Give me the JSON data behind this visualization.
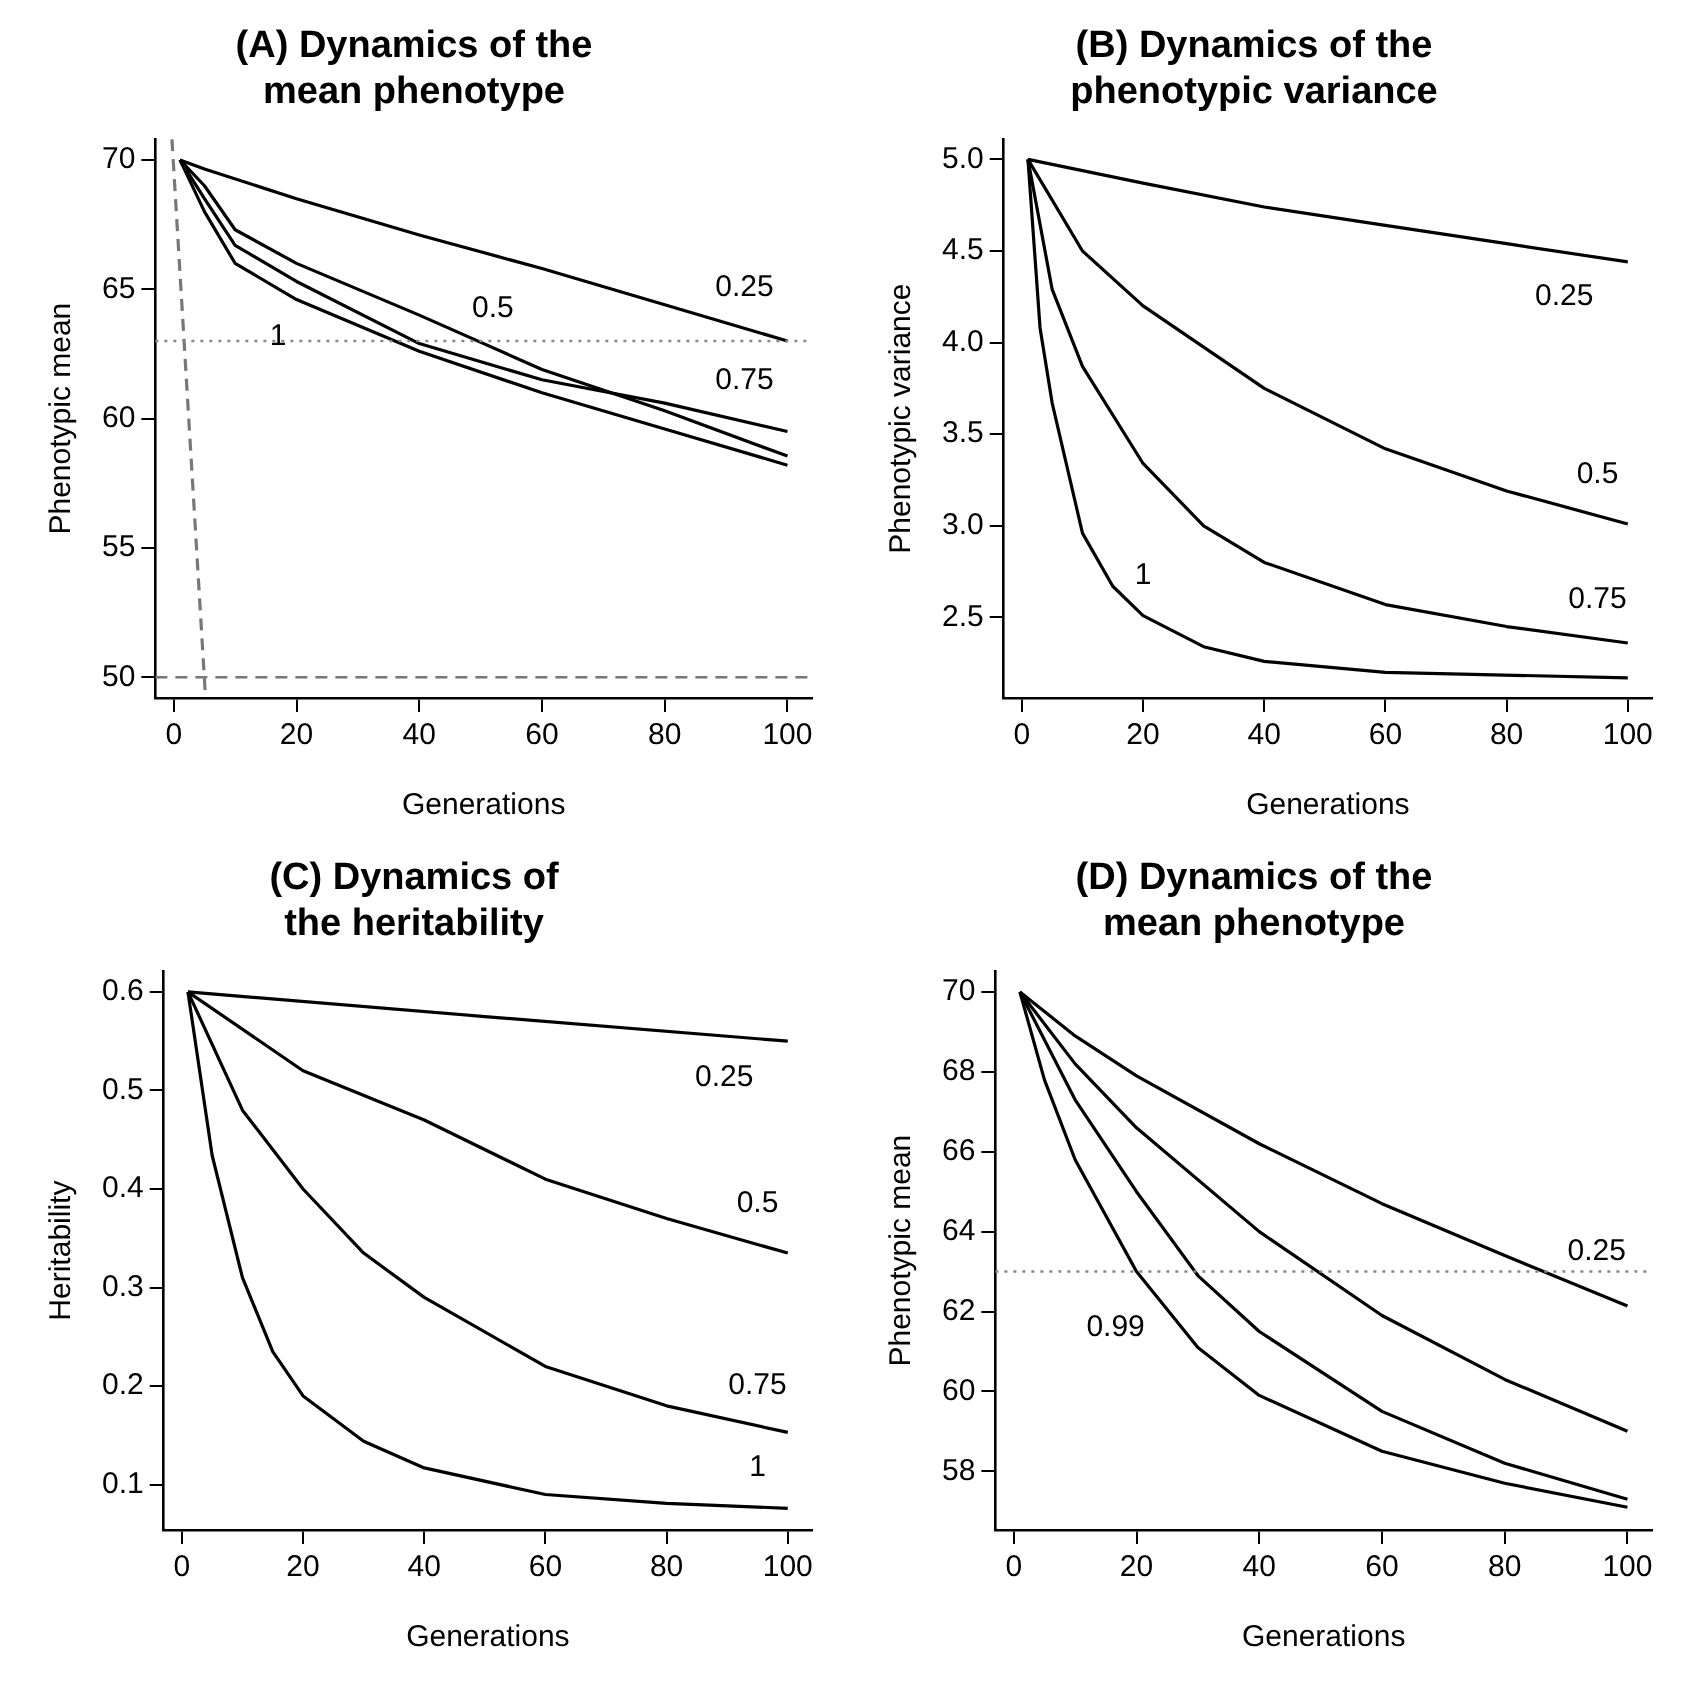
{
  "chart_data": [
    {
      "type": "line",
      "title": "(A) Dynamics of the\nmean phenotype",
      "xlabel": "Generations",
      "ylabel": "Phenotypic mean",
      "xlim": [
        -3,
        104
      ],
      "ylim": [
        49.2,
        70.8
      ],
      "xticks": [
        0,
        20,
        40,
        60,
        80,
        100
      ],
      "yticks": [
        50,
        55,
        60,
        65,
        70
      ],
      "marker": "none",
      "series": [
        {
          "color": "#000000",
          "x": [
            1,
            5,
            20,
            40,
            60,
            80,
            100
          ],
          "values": [
            70,
            69.65,
            68.5,
            67.1,
            65.8,
            64.4,
            63.0
          ]
        },
        {
          "color": "#000000",
          "x": [
            1,
            5,
            10,
            20,
            40,
            60,
            80,
            100
          ],
          "values": [
            70,
            69.0,
            67.3,
            66.0,
            64.0,
            61.9,
            60.3,
            58.55
          ]
        },
        {
          "color": "#000000",
          "x": [
            1,
            5,
            10,
            20,
            40,
            60,
            80,
            100
          ],
          "values": [
            70,
            68.5,
            66.7,
            65.3,
            62.9,
            61.5,
            60.6,
            59.5
          ]
        },
        {
          "color": "#000000",
          "x": [
            1,
            5,
            10,
            20,
            40,
            60,
            80,
            100
          ],
          "values": [
            70,
            68.0,
            66.0,
            64.6,
            62.6,
            61.0,
            59.6,
            58.2
          ]
        },
        {
          "color": "#777777",
          "line_style": "dashed",
          "x": [
            -0.3,
            5.1
          ],
          "values": [
            70.8,
            49.5
          ]
        }
      ],
      "ref_lines": [
        {
          "axis": "y",
          "value": 63,
          "color": "#888888",
          "line_style": "dotted"
        },
        {
          "axis": "y",
          "value": 50,
          "color": "#777777",
          "line_style": "dashed"
        }
      ],
      "annotations": [
        {
          "text": "1",
          "x": 19,
          "y": 64.7
        },
        {
          "text": "0.5",
          "x": 52,
          "y": 62.7
        },
        {
          "text": "0.25",
          "x": 93,
          "y": 63.5
        },
        {
          "text": "0.75",
          "x": 93,
          "y": 59.9
        }
      ]
    },
    {
      "type": "line",
      "title": "(B) Dynamics of the\nphenotypic variance",
      "xlabel": "Generations",
      "ylabel": "Phenotypic variance",
      "xlim": [
        -3,
        104
      ],
      "ylim": [
        2.06,
        5.11
      ],
      "xticks": [
        0,
        20,
        40,
        60,
        80,
        100
      ],
      "yticks": [
        {
          "value": 2.5,
          "label": "2.5"
        },
        {
          "value": 3,
          "label": "3.0"
        },
        {
          "value": 3.5,
          "label": "3.5"
        },
        {
          "value": 4,
          "label": "4.0"
        },
        {
          "value": 4.5,
          "label": "4.5"
        },
        {
          "value": 5,
          "label": "5.0"
        }
      ],
      "marker": "none",
      "series": [
        {
          "color": "#000000",
          "x": [
            1,
            20,
            40,
            60,
            80,
            100
          ],
          "values": [
            5,
            4.87,
            4.74,
            4.64,
            4.54,
            4.44
          ]
        },
        {
          "color": "#000000",
          "x": [
            1,
            10,
            20,
            40,
            60,
            80,
            100
          ],
          "values": [
            5,
            4.5,
            4.2,
            3.75,
            3.42,
            3.19,
            3.01
          ]
        },
        {
          "color": "#000000",
          "x": [
            1,
            5,
            10,
            20,
            30,
            40,
            60,
            80,
            100
          ],
          "values": [
            5,
            4.29,
            3.87,
            3.34,
            3.0,
            2.8,
            2.57,
            2.45,
            2.36
          ]
        },
        {
          "color": "#000000",
          "x": [
            1,
            3,
            5,
            10,
            15,
            20,
            30,
            40,
            60,
            100
          ],
          "values": [
            5,
            4.08,
            3.67,
            2.96,
            2.67,
            2.51,
            2.34,
            2.26,
            2.2,
            2.17
          ]
        }
      ],
      "annotations": [
        {
          "text": "0.25",
          "x": 95,
          "y": 4.47
        },
        {
          "text": "0.5",
          "x": 95,
          "y": 3.06
        },
        {
          "text": "0.75",
          "x": 95,
          "y": 2.38
        },
        {
          "text": "1",
          "x": 20,
          "y": 2.51
        }
      ]
    },
    {
      "type": "line",
      "title": "(C) Dynamics of\nthe heritability",
      "xlabel": "Generations",
      "ylabel": "Heritability",
      "xlim": [
        -3,
        104
      ],
      "ylim": [
        0.054,
        0.621
      ],
      "xticks": [
        0,
        20,
        40,
        60,
        80,
        100
      ],
      "yticks": [
        0.1,
        0.2,
        0.3,
        0.4,
        0.5,
        0.6
      ],
      "marker": "none",
      "series": [
        {
          "color": "#000000",
          "x": [
            1,
            50,
            100
          ],
          "values": [
            0.6,
            0.575,
            0.55
          ]
        },
        {
          "color": "#000000",
          "x": [
            1,
            20,
            40,
            60,
            80,
            100
          ],
          "values": [
            0.6,
            0.52,
            0.47,
            0.41,
            0.37,
            0.335
          ]
        },
        {
          "color": "#000000",
          "x": [
            1,
            10,
            20,
            30,
            40,
            60,
            80,
            100
          ],
          "values": [
            0.6,
            0.48,
            0.4,
            0.335,
            0.29,
            0.22,
            0.18,
            0.153
          ]
        },
        {
          "color": "#000000",
          "x": [
            1,
            5,
            10,
            15,
            20,
            30,
            40,
            60,
            80,
            100
          ],
          "values": [
            0.6,
            0.434,
            0.31,
            0.235,
            0.19,
            0.144,
            0.117,
            0.09,
            0.081,
            0.076
          ]
        }
      ],
      "annotations": [
        {
          "text": "0.25",
          "x": 95,
          "y": 0.553
        },
        {
          "text": "0.5",
          "x": 95,
          "y": 0.344
        },
        {
          "text": "0.75",
          "x": 95,
          "y": 0.16
        },
        {
          "text": "1",
          "x": 95,
          "y": 0.077
        }
      ]
    },
    {
      "type": "line",
      "title": "(D) Dynamics of the\nmean phenotype",
      "xlabel": "Generations",
      "ylabel": "Phenotypic mean",
      "xlim": [
        -3,
        104
      ],
      "ylim": [
        56.53,
        70.52
      ],
      "xticks": [
        0,
        20,
        40,
        60,
        80,
        100
      ],
      "yticks": [
        58,
        60,
        62,
        64,
        66,
        68,
        70
      ],
      "marker": "none",
      "series": [
        {
          "color": "#000000",
          "x": [
            1,
            10,
            20,
            40,
            60,
            80,
            100
          ],
          "values": [
            70,
            68.9,
            67.9,
            66.2,
            64.7,
            63.4,
            62.14
          ]
        },
        {
          "color": "#000000",
          "x": [
            1,
            10,
            20,
            40,
            60,
            80,
            100
          ],
          "values": [
            70,
            68.2,
            66.6,
            64.0,
            61.9,
            60.3,
            59.0
          ]
        },
        {
          "color": "#000000",
          "x": [
            1,
            10,
            20,
            30,
            40,
            60,
            80,
            100
          ],
          "values": [
            70,
            67.3,
            65.0,
            62.9,
            61.5,
            59.5,
            58.2,
            57.3
          ]
        },
        {
          "color": "#000000",
          "x": [
            1,
            5,
            10,
            20,
            30,
            40,
            60,
            80,
            100
          ],
          "values": [
            70,
            67.8,
            65.8,
            63.0,
            61.1,
            59.9,
            58.5,
            57.7,
            57.1
          ]
        }
      ],
      "ref_lines": [
        {
          "axis": "y",
          "value": 63,
          "color": "#888888",
          "line_style": "dotted"
        }
      ],
      "annotations": [
        {
          "text": "0.99",
          "x": 22,
          "y": 62.6
        },
        {
          "text": "0.25",
          "x": 95,
          "y": 62.5
        }
      ]
    }
  ]
}
